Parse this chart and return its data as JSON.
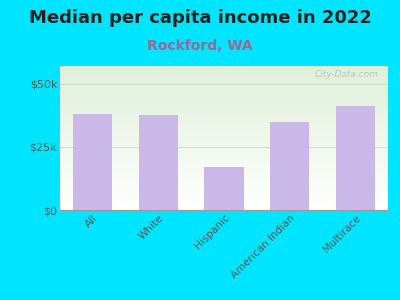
{
  "title": "Median per capita income in 2022",
  "subtitle": "Rockford, WA",
  "categories": [
    "All",
    "White",
    "Hispanic",
    "American Indian",
    "Multirace"
  ],
  "values": [
    38000,
    37500,
    17000,
    35000,
    41000
  ],
  "bar_color": "#c9b8e8",
  "background_outer": "#00e5ff",
  "background_inner_top": "#dff0d8",
  "background_inner_bottom": "#ffffff",
  "title_fontsize": 13,
  "subtitle_fontsize": 10,
  "yticks": [
    0,
    25000,
    50000
  ],
  "ylim": [
    0,
    57000
  ],
  "watermark": "City-Data.com"
}
